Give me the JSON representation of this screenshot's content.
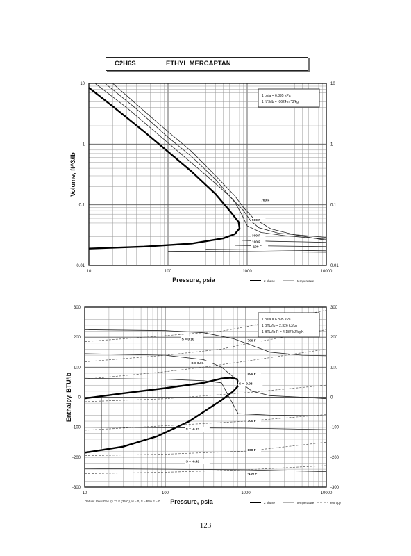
{
  "header": {
    "formula": "C2H6S",
    "name": "ETHYL MERCAPTAN"
  },
  "page_number": "123",
  "chart_data": [
    {
      "type": "line",
      "id": "volume",
      "xlabel": "Pressure,  psia",
      "ylabel": "Volume, ft^3/lb",
      "xscale": "log",
      "yscale": "log",
      "xlim": [
        10,
        10000
      ],
      "ylim": [
        0.01,
        10
      ],
      "x_ticks": [
        "10",
        "100",
        "1000",
        "10000"
      ],
      "y_ticks": [
        "10",
        "1",
        "0.1",
        "0.01"
      ],
      "grid": true,
      "conversion_box": [
        "1 psia = 6.895 kPa",
        "1 ft^3/lb = .0624 m^3/kg"
      ],
      "legend": [
        "2 phase",
        "temperature"
      ],
      "series": [
        {
          "kind": "phase",
          "points": [
            [
              10,
              8.5
            ],
            [
              20,
              4.2
            ],
            [
              50,
              1.6
            ],
            [
              100,
              0.75
            ],
            [
              200,
              0.35
            ],
            [
              400,
              0.15
            ],
            [
              600,
              0.08
            ],
            [
              780,
              0.052
            ],
            [
              800,
              0.041
            ],
            [
              700,
              0.033
            ],
            [
              500,
              0.028
            ],
            [
              200,
              0.023
            ],
            [
              50,
              0.0205
            ],
            [
              10,
              0.019
            ]
          ]
        },
        {
          "kind": "isotherm",
          "points": [
            [
              20,
              10
            ],
            [
              50,
              3.5
            ],
            [
              100,
              1.6
            ],
            [
              200,
              0.75
            ],
            [
              400,
              0.3
            ],
            [
              700,
              0.14
            ],
            [
              900,
              0.09
            ],
            [
              1200,
              0.06
            ],
            [
              2000,
              0.04
            ],
            [
              4000,
              0.032
            ],
            [
              10000,
              0.026
            ]
          ]
        },
        {
          "kind": "isotherm",
          "points": [
            [
              16,
              10
            ],
            [
              40,
              3.8
            ],
            [
              100,
              1.3
            ],
            [
              200,
              0.62
            ],
            [
              400,
              0.26
            ],
            [
              700,
              0.11
            ],
            [
              850,
              0.07
            ],
            [
              1000,
              0.045
            ],
            [
              1500,
              0.035
            ],
            [
              3000,
              0.031
            ],
            [
              10000,
              0.027
            ]
          ]
        },
        {
          "kind": "isotherm",
          "points": [
            [
              12,
              10
            ],
            [
              30,
              4
            ],
            [
              100,
              1.05
            ],
            [
              300,
              0.31
            ],
            [
              600,
              0.14
            ],
            [
              900,
              0.08
            ],
            [
              1100,
              0.055
            ],
            [
              1400,
              0.042
            ],
            [
              2500,
              0.034
            ],
            [
              10000,
              0.029
            ]
          ]
        },
        {
          "kind": "isotherm",
          "points": [
            [
              850,
              0.026
            ],
            [
              2000,
              0.025
            ],
            [
              5000,
              0.0245
            ],
            [
              10000,
              0.024
            ]
          ]
        },
        {
          "kind": "isotherm",
          "points": [
            [
              700,
              0.0215
            ],
            [
              2000,
              0.021
            ],
            [
              10000,
              0.0205
            ]
          ]
        },
        {
          "kind": "isotherm",
          "points": [
            [
              300,
              0.0185
            ],
            [
              2000,
              0.018
            ],
            [
              10000,
              0.0175
            ]
          ]
        },
        {
          "kind": "isotherm",
          "points": [
            [
              100,
              0.0172
            ],
            [
              1000,
              0.017
            ],
            [
              10000,
              0.0165
            ]
          ]
        }
      ],
      "annotations": [
        {
          "text": "700 F",
          "x": 1500,
          "y": 0.115
        },
        {
          "text": "500 F",
          "x": 1150,
          "y": 0.054
        },
        {
          "text": "300 F",
          "x": 1150,
          "y": 0.03
        },
        {
          "text": "100 F",
          "x": 1150,
          "y": 0.0235
        },
        {
          "text": "-100 F",
          "x": 1150,
          "y": 0.0195
        }
      ]
    },
    {
      "type": "line",
      "id": "enthalpy",
      "xlabel": "Pressure,  psia",
      "ylabel": "Enthalpy, BTU/lb",
      "xscale": "log",
      "yscale": "linear",
      "xlim": [
        10,
        10000
      ],
      "ylim": [
        -300,
        300
      ],
      "x_ticks": [
        "10",
        "100",
        "1000",
        "10000"
      ],
      "y_ticks": [
        "300",
        "200",
        "100",
        "0",
        "-100",
        "-200",
        "-300"
      ],
      "grid": true,
      "conversion_box": [
        "1 psia = 6.895 kPa",
        "1 BTU/lb = 2.326 kJ/kg",
        "1 BTU/lb R = 4.187 kJ/kg K"
      ],
      "legend": [
        "2 phase",
        "temperature",
        "entropy"
      ],
      "datum": "Datum: Ideal Gas @ 77 F (25 C),  H = 0,  S = R ln F = 0",
      "series": [
        {
          "kind": "phase",
          "points": [
            [
              10,
              -4
            ],
            [
              30,
              13
            ],
            [
              100,
              30
            ],
            [
              300,
              48
            ],
            [
              500,
              62
            ],
            [
              650,
              65
            ],
            [
              780,
              60
            ],
            [
              820,
              40
            ],
            [
              700,
              20
            ],
            [
              500,
              -10
            ],
            [
              200,
              -80
            ],
            [
              80,
              -130
            ],
            [
              30,
              -165
            ],
            [
              10,
              -185
            ]
          ]
        },
        {
          "kind": "phase-tie",
          "points": [
            [
              16,
              -172
            ],
            [
              16,
              0
            ]
          ]
        },
        {
          "kind": "isotherm",
          "points": [
            [
              10,
              225
            ],
            [
              100,
              222
            ],
            [
              300,
              215
            ],
            [
              700,
              195
            ],
            [
              1000,
              180
            ],
            [
              2000,
              150
            ],
            [
              5000,
              140
            ],
            [
              10000,
              138
            ]
          ]
        },
        {
          "kind": "isotherm",
          "points": [
            [
              10,
              145
            ],
            [
              100,
              140
            ],
            [
              300,
              125
            ],
            [
              500,
              100
            ],
            [
              800,
              55
            ],
            [
              1200,
              20
            ],
            [
              2000,
              5
            ],
            [
              5000,
              0
            ],
            [
              10000,
              -5
            ]
          ]
        },
        {
          "kind": "isotherm",
          "points": [
            [
              10,
              63
            ],
            [
              100,
              60
            ],
            [
              300,
              55
            ],
            [
              500,
              48
            ],
            [
              800,
              -55
            ],
            [
              2000,
              -60
            ],
            [
              10000,
              -62
            ]
          ]
        },
        {
          "kind": "isotherm",
          "points": [
            [
              10,
              -100
            ],
            [
              1000,
              -103
            ],
            [
              10000,
              -108
            ]
          ]
        },
        {
          "kind": "isotherm",
          "points": [
            [
              10,
              -238
            ],
            [
              1000,
              -242
            ],
            [
              10000,
              -248
            ]
          ]
        },
        {
          "kind": "entropy",
          "points": [
            [
              10,
              -255
            ],
            [
              100,
              -250
            ],
            [
              1000,
              -242
            ],
            [
              10000,
              -228
            ]
          ]
        },
        {
          "kind": "entropy",
          "points": [
            [
              10,
              -195
            ],
            [
              100,
              -190
            ],
            [
              1000,
              -180
            ],
            [
              10000,
              -150
            ]
          ]
        },
        {
          "kind": "entropy",
          "points": [
            [
              10,
              -110
            ],
            [
              100,
              -95
            ],
            [
              1000,
              -80
            ],
            [
              10000,
              -58
            ]
          ]
        },
        {
          "kind": "entropy",
          "points": [
            [
              10,
              -15
            ],
            [
              100,
              -5
            ],
            [
              1000,
              15
            ],
            [
              10000,
              40
            ]
          ]
        },
        {
          "kind": "entropy",
          "points": [
            [
              10,
              60
            ],
            [
              100,
              85
            ],
            [
              300,
              100
            ],
            [
              1000,
              120
            ],
            [
              10000,
              160
            ]
          ]
        },
        {
          "kind": "entropy",
          "points": [
            [
              10,
              118
            ],
            [
              100,
              140
            ],
            [
              500,
              160
            ],
            [
              1000,
              178
            ],
            [
              10000,
              225
            ]
          ]
        },
        {
          "kind": "entropy",
          "points": [
            [
              10,
              185
            ],
            [
              100,
              205
            ],
            [
              500,
              220
            ],
            [
              1000,
              235
            ],
            [
              10000,
              290
            ]
          ]
        }
      ],
      "annotations": [
        {
          "text": "S = 0.10",
          "x": 160,
          "y": 190
        },
        {
          "text": "S = 0.01",
          "x": 210,
          "y": 110
        },
        {
          "text": "S = -0.03",
          "x": 820,
          "y": 42
        },
        {
          "text": "S = -0.22",
          "x": 180,
          "y": -110
        },
        {
          "text": "S = -0.41",
          "x": 180,
          "y": -218
        },
        {
          "text": "700 F",
          "x": 1050,
          "y": 185
        },
        {
          "text": "500 F",
          "x": 1050,
          "y": 75
        },
        {
          "text": "300 F",
          "x": 1050,
          "y": -82
        },
        {
          "text": "100 F",
          "x": 1050,
          "y": -180
        },
        {
          "text": "-100 F",
          "x": 1050,
          "y": -258
        }
      ]
    }
  ]
}
